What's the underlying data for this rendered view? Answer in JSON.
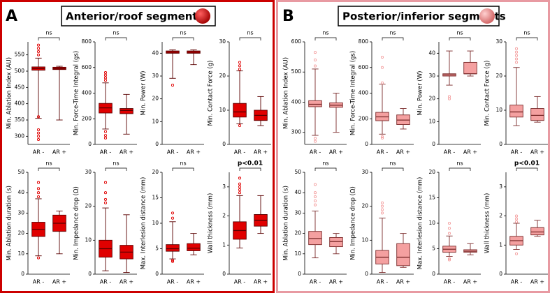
{
  "panels": [
    {
      "letter": "A",
      "title": "Anterior/roof segments"
    },
    {
      "letter": "B",
      "title": "Posterior/inferior segments"
    }
  ],
  "chart_data": [
    {
      "type": "box",
      "y_label": "Min. Ablation Index (AU)",
      "annotation": "ns",
      "categories": [
        "AR -",
        "AR +"
      ],
      "ylim": [
        275,
        590
      ],
      "yticks": [
        300,
        350,
        400,
        450,
        500,
        550
      ],
      "color": "#e00000",
      "edge_color": "#5a0000",
      "boxes": [
        {
          "min": 355,
          "q1": 503,
          "median": 508,
          "q3": 513,
          "max": 540,
          "outliers": [
            290,
            300,
            310,
            320,
            360,
            550,
            560,
            570,
            580
          ]
        },
        {
          "min": 350,
          "q1": 505,
          "median": 508,
          "q3": 512,
          "max": 515,
          "outliers": []
        }
      ]
    },
    {
      "type": "box",
      "y_label": "Min. Force-Time Integral (gs)",
      "annotation": "ns",
      "categories": [
        "AR -",
        "AR +"
      ],
      "ylim": [
        0,
        800
      ],
      "yticks": [
        0,
        200,
        400,
        600,
        800
      ],
      "color": "#e00000",
      "edge_color": "#5a0000",
      "boxes": [
        {
          "min": 120,
          "q1": 245,
          "median": 285,
          "q3": 320,
          "max": 480,
          "outliers": [
            50,
            70,
            100,
            500,
            520,
            540,
            560
          ]
        },
        {
          "min": 80,
          "q1": 240,
          "median": 265,
          "q3": 280,
          "max": 390,
          "outliers": []
        }
      ]
    },
    {
      "type": "box",
      "y_label": "Min. Power (W)",
      "annotation": "ns",
      "categories": [
        "AR -",
        "AR +"
      ],
      "ylim": [
        0,
        45
      ],
      "yticks": [
        0,
        10,
        20,
        30,
        40
      ],
      "color": "#e00000",
      "edge_color": "#5a0000",
      "boxes": [
        {
          "min": 29,
          "q1": 40,
          "median": 40.5,
          "q3": 41,
          "max": 41.5,
          "outliers": [
            26
          ]
        },
        {
          "min": 35,
          "q1": 40,
          "median": 40.5,
          "q3": 41,
          "max": 41.5,
          "outliers": []
        }
      ]
    },
    {
      "type": "box",
      "y_label": "Min. Contact Force (g)",
      "annotation": "ns",
      "categories": [
        "AR -",
        "AR +"
      ],
      "ylim": [
        0,
        30
      ],
      "yticks": [
        0,
        10,
        20,
        30
      ],
      "color": "#e00000",
      "edge_color": "#5a0000",
      "boxes": [
        {
          "min": 6,
          "q1": 8,
          "median": 9.5,
          "q3": 12,
          "max": 21.5,
          "outliers": [
            5.5,
            22,
            23,
            24
          ]
        },
        {
          "min": 5.5,
          "q1": 7,
          "median": 8.5,
          "q3": 10,
          "max": 14,
          "outliers": []
        }
      ]
    },
    {
      "type": "box",
      "y_label": "Min. Ablation duration (s)",
      "annotation": "ns",
      "categories": [
        "AR -",
        "AR +"
      ],
      "ylim": [
        0,
        50
      ],
      "yticks": [
        0,
        10,
        20,
        30,
        40,
        50
      ],
      "color": "#e00000",
      "edge_color": "#5a0000",
      "boxes": [
        {
          "min": 9,
          "q1": 18.5,
          "median": 22,
          "q3": 25.5,
          "max": 37,
          "outliers": [
            8,
            38,
            40,
            42,
            45
          ]
        },
        {
          "min": 10,
          "q1": 21,
          "median": 25,
          "q3": 29,
          "max": 31,
          "outliers": []
        }
      ]
    },
    {
      "type": "box",
      "y_label": "Min. Impedance drop (Ω)",
      "annotation": "ns",
      "categories": [
        "AR -",
        "AR +"
      ],
      "ylim": [
        0,
        30
      ],
      "yticks": [
        0,
        10,
        20,
        30
      ],
      "color": "#e00000",
      "edge_color": "#5a0000",
      "boxes": [
        {
          "min": 1,
          "q1": 5,
          "median": 7.5,
          "q3": 10,
          "max": 19.5,
          "outliers": [
            21,
            22,
            24,
            27
          ]
        },
        {
          "min": 0.5,
          "q1": 4.5,
          "median": 6.5,
          "q3": 8.5,
          "max": 17.5,
          "outliers": []
        }
      ]
    },
    {
      "type": "box",
      "y_label": "Max. Interlesion distance (mm)",
      "annotation": "ns",
      "categories": [
        "AR -",
        "AR +"
      ],
      "ylim": [
        0,
        20
      ],
      "yticks": [
        0,
        5,
        10,
        15,
        20
      ],
      "color": "#e00000",
      "edge_color": "#5a0000",
      "boxes": [
        {
          "min": 3,
          "q1": 4.5,
          "median": 5,
          "q3": 5.8,
          "max": 10.3,
          "outliers": [
            2.5,
            2.7,
            11,
            12
          ]
        },
        {
          "min": 3.8,
          "q1": 4.6,
          "median": 5.1,
          "q3": 6,
          "max": 8,
          "outliers": []
        }
      ]
    },
    {
      "type": "box",
      "y_label": "Wall thickness (mm)",
      "annotation": "p<0.01",
      "categories": [
        "AR -",
        "AR +"
      ],
      "ylim": [
        0,
        3.5
      ],
      "yticks": [
        0,
        1,
        2,
        3
      ],
      "color": "#e00000",
      "edge_color": "#5a0000",
      "boxes": [
        {
          "min": 0.9,
          "q1": 1.2,
          "median": 1.5,
          "q3": 1.8,
          "max": 2.7,
          "outliers": [
            2.8,
            2.9,
            3,
            3.1,
            3.3
          ]
        },
        {
          "min": 1.4,
          "q1": 1.65,
          "median": 1.85,
          "q3": 2.05,
          "max": 2.7,
          "outliers": []
        }
      ]
    },
    {
      "type": "box",
      "y_label": "Min. Ablation Index (AU)",
      "annotation": "ns",
      "categories": [
        "AR -",
        "AR +"
      ],
      "ylim": [
        260,
        600
      ],
      "yticks": [
        300,
        400,
        500,
        600
      ],
      "color": "#f4a0a0",
      "edge_color": "#7a2a2a",
      "boxes": [
        {
          "min": 290,
          "q1": 385,
          "median": 393,
          "q3": 405,
          "max": 510,
          "outliers": [
            270,
            280,
            520,
            540,
            565
          ]
        },
        {
          "min": 300,
          "q1": 383,
          "median": 390,
          "q3": 398,
          "max": 430,
          "outliers": []
        }
      ]
    },
    {
      "type": "box",
      "y_label": "Min. Force-Time Integral (gs)",
      "annotation": "ns",
      "categories": [
        "AR -",
        "AR +"
      ],
      "ylim": [
        0,
        800
      ],
      "yticks": [
        0,
        200,
        400,
        600,
        800
      ],
      "color": "#f4a0a0",
      "edge_color": "#7a2a2a",
      "boxes": [
        {
          "min": 80,
          "q1": 185,
          "median": 215,
          "q3": 250,
          "max": 470,
          "outliers": [
            50,
            60,
            480,
            600,
            680
          ]
        },
        {
          "min": 120,
          "q1": 155,
          "median": 190,
          "q3": 230,
          "max": 280,
          "outliers": []
        }
      ]
    },
    {
      "type": "box",
      "y_label": "Min. Power (W)",
      "annotation": "ns",
      "categories": [
        "AR -",
        "AR +"
      ],
      "ylim": [
        0,
        45
      ],
      "yticks": [
        0,
        10,
        20,
        30,
        40
      ],
      "color": "#f4a0a0",
      "edge_color": "#7a2a2a",
      "boxes": [
        {
          "min": 26,
          "q1": 30,
          "median": 30.5,
          "q3": 31,
          "max": 41,
          "outliers": [
            20,
            21
          ]
        },
        {
          "min": 30,
          "q1": 31,
          "median": 31,
          "q3": 36,
          "max": 41,
          "outliers": []
        }
      ]
    },
    {
      "type": "box",
      "y_label": "Min. Contact Force (g)",
      "annotation": "ns",
      "categories": [
        "AR -",
        "AR +"
      ],
      "ylim": [
        0,
        30
      ],
      "yticks": [
        0,
        10,
        20,
        30
      ],
      "color": "#f4a0a0",
      "edge_color": "#7a2a2a",
      "boxes": [
        {
          "min": 5.5,
          "q1": 8,
          "median": 9.5,
          "q3": 11.5,
          "max": 22.5,
          "outliers": [
            24,
            25,
            26,
            27,
            28
          ]
        },
        {
          "min": 6.5,
          "q1": 7,
          "median": 8.5,
          "q3": 10.5,
          "max": 14,
          "outliers": []
        }
      ]
    },
    {
      "type": "box",
      "y_label": "Min. Ablation duration (s)",
      "annotation": "ns",
      "categories": [
        "AR -",
        "AR +"
      ],
      "ylim": [
        0,
        50
      ],
      "yticks": [
        0,
        10,
        20,
        30,
        40,
        50
      ],
      "color": "#f4a0a0",
      "edge_color": "#7a2a2a",
      "boxes": [
        {
          "min": 8,
          "q1": 14.5,
          "median": 17.5,
          "q3": 21,
          "max": 31,
          "outliers": [
            34,
            36,
            38,
            40,
            44
          ]
        },
        {
          "min": 10,
          "q1": 13.5,
          "median": 16,
          "q3": 18,
          "max": 20,
          "outliers": []
        }
      ]
    },
    {
      "type": "box",
      "y_label": "Min. Impedance drop (Ω)",
      "annotation": "ns",
      "categories": [
        "AR -",
        "AR +"
      ],
      "ylim": [
        0,
        30
      ],
      "yticks": [
        0,
        10,
        20,
        30
      ],
      "color": "#f4a0a0",
      "edge_color": "#7a2a2a",
      "boxes": [
        {
          "min": 0.5,
          "q1": 3,
          "median": 5,
          "q3": 7,
          "max": 16.5,
          "outliers": [
            18,
            19,
            20,
            21
          ]
        },
        {
          "min": 2,
          "q1": 2.5,
          "median": 5,
          "q3": 9,
          "max": 12,
          "outliers": []
        }
      ]
    },
    {
      "type": "box",
      "y_label": "Max. Interlesion distance (mm)",
      "annotation": "ns",
      "categories": [
        "AR -",
        "AR +"
      ],
      "ylim": [
        0,
        20
      ],
      "yticks": [
        0,
        5,
        10,
        15,
        20
      ],
      "color": "#f4a0a0",
      "edge_color": "#7a2a2a",
      "boxes": [
        {
          "min": 3.5,
          "q1": 4.3,
          "median": 4.9,
          "q3": 5.5,
          "max": 7.5,
          "outliers": [
            2.8,
            3,
            8,
            9,
            10
          ]
        },
        {
          "min": 3.8,
          "q1": 4.3,
          "median": 4.5,
          "q3": 4.8,
          "max": 6,
          "outliers": []
        }
      ]
    },
    {
      "type": "box",
      "y_label": "Wall thickness (mm)",
      "annotation": "p<0.01",
      "categories": [
        "AR -",
        "AR +"
      ],
      "ylim": [
        0,
        3.5
      ],
      "yticks": [
        0,
        1,
        2,
        3
      ],
      "color": "#f4a0a0",
      "edge_color": "#7a2a2a",
      "boxes": [
        {
          "min": 0.85,
          "q1": 1,
          "median": 1.15,
          "q3": 1.3,
          "max": 1.75,
          "outliers": [
            0.7,
            1.8,
            1.9,
            2
          ]
        },
        {
          "min": 1.3,
          "q1": 1.35,
          "median": 1.45,
          "q3": 1.6,
          "max": 1.85,
          "outliers": []
        }
      ]
    }
  ]
}
